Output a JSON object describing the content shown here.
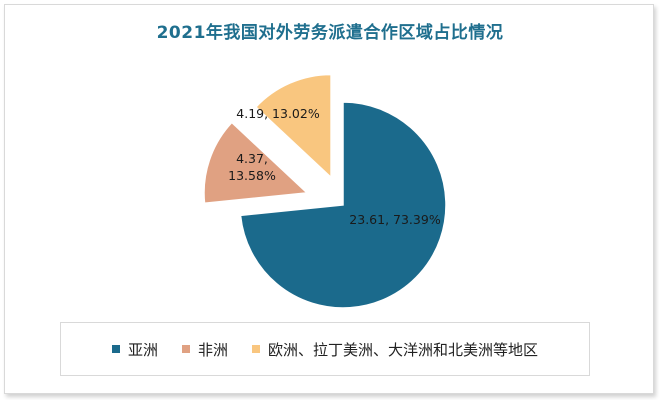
{
  "chart_data": {
    "type": "pie",
    "title": "2021年我国对外劳务派遣合作区域占比情况",
    "slices": [
      {
        "name": "亚洲",
        "value": 23.61,
        "percent": "73.39%",
        "label": "23.61, 73.39%",
        "color": "#1b6a8c"
      },
      {
        "name": "非洲",
        "value": 4.37,
        "percent": "13.58%",
        "label_lines": [
          "4.37,",
          "13.58%"
        ],
        "color": "#e0a182"
      },
      {
        "name": "欧洲、拉丁美洲、大洋洲和北美洲等地区",
        "value": 4.19,
        "percent": "13.02%",
        "label": "4.19, 13.02%",
        "color": "#f9c67f"
      }
    ],
    "legend_position": "bottom",
    "exploded": true
  }
}
